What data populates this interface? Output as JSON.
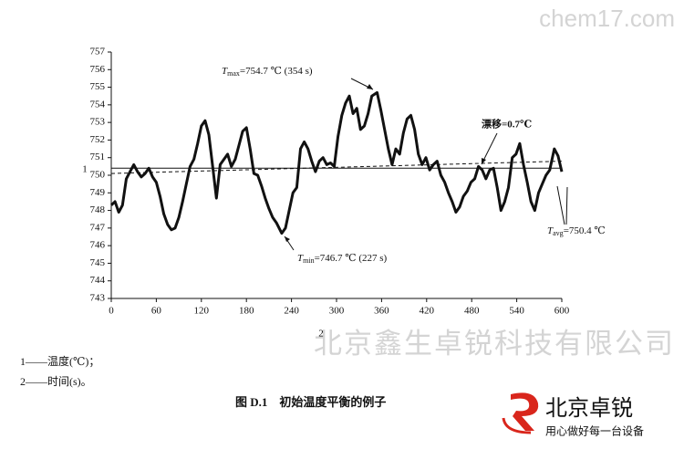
{
  "watermark": "chem17.com",
  "company": "北京鑫生卓锐科技有限公司",
  "logo": {
    "name": "北京卓锐",
    "slogan": "用心做好每一台设备"
  },
  "notes": [
    "1——温度(℃)；",
    "2——时间(s)。"
  ],
  "caption": "图 D.1　初始温度平衡的例子",
  "chart_data": {
    "type": "line",
    "y_label": "1",
    "x_label": "2",
    "color": "#111111",
    "xlim": [
      0,
      600
    ],
    "ylim": [
      743,
      757
    ],
    "xticks": [
      0,
      60,
      120,
      180,
      240,
      300,
      360,
      420,
      480,
      540,
      600
    ],
    "yticks": [
      743,
      744,
      745,
      746,
      747,
      748,
      749,
      750,
      751,
      752,
      753,
      754,
      755,
      756,
      757
    ],
    "x": [
      0,
      5,
      10,
      15,
      20,
      25,
      30,
      35,
      40,
      45,
      50,
      55,
      60,
      65,
      70,
      75,
      80,
      85,
      90,
      95,
      100,
      105,
      110,
      115,
      120,
      125,
      130,
      135,
      140,
      145,
      150,
      155,
      160,
      165,
      170,
      175,
      180,
      185,
      190,
      195,
      200,
      205,
      210,
      215,
      220,
      227,
      232,
      237,
      242,
      247,
      252,
      257,
      262,
      267,
      272,
      277,
      282,
      287,
      292,
      297,
      302,
      307,
      312,
      317,
      322,
      327,
      332,
      337,
      342,
      347,
      354,
      359,
      364,
      369,
      374,
      379,
      384,
      389,
      394,
      399,
      404,
      409,
      414,
      419,
      424,
      429,
      434,
      439,
      444,
      449,
      454,
      459,
      464,
      469,
      474,
      479,
      484,
      489,
      494,
      499,
      504,
      509,
      514,
      519,
      524,
      529,
      534,
      539,
      544,
      549,
      554,
      559,
      564,
      569,
      574,
      579,
      584,
      590,
      595,
      600
    ],
    "values": [
      748.3,
      748.5,
      747.9,
      748.3,
      749.8,
      750.2,
      750.6,
      750.2,
      749.9,
      750.1,
      750.4,
      749.9,
      749.6,
      748.8,
      747.8,
      747.2,
      746.9,
      747.0,
      747.6,
      748.5,
      749.5,
      750.5,
      750.9,
      751.8,
      752.8,
      753.1,
      752.3,
      750.5,
      748.7,
      750.6,
      750.9,
      751.2,
      750.5,
      750.9,
      751.7,
      752.5,
      752.7,
      751.5,
      750.1,
      750.0,
      749.4,
      748.7,
      748.1,
      747.6,
      747.3,
      746.7,
      747.0,
      748.0,
      749.0,
      749.3,
      751.5,
      751.9,
      751.5,
      750.8,
      750.2,
      750.8,
      751.0,
      750.6,
      750.7,
      750.5,
      752.2,
      753.4,
      754.1,
      754.5,
      753.5,
      753.8,
      752.6,
      752.8,
      753.5,
      754.5,
      754.7,
      753.7,
      752.6,
      751.5,
      750.6,
      751.5,
      751.2,
      752.4,
      753.2,
      753.4,
      752.6,
      751.2,
      750.6,
      751.0,
      750.3,
      750.6,
      750.8,
      750.0,
      749.6,
      749.0,
      748.5,
      747.9,
      748.2,
      748.8,
      749.1,
      749.6,
      749.8,
      750.5,
      750.3,
      749.8,
      750.3,
      750.4,
      749.3,
      748.0,
      748.5,
      749.3,
      751.0,
      751.2,
      751.8,
      750.6,
      749.6,
      748.5,
      748.0,
      749.0,
      749.5,
      750.0,
      750.3,
      751.5,
      751.1,
      750.2
    ],
    "avg_line": 750.4,
    "drift_line": [
      750.1,
      750.8
    ],
    "annotations": [
      {
        "symbol": "T",
        "sub": "max",
        "text": "=754.7 ℃ (354 s)"
      },
      {
        "symbol": "T",
        "sub": "min",
        "text": "=746.7 ℃ (227 s)"
      },
      {
        "text": "漂移=0.7℃"
      },
      {
        "symbol": "T",
        "sub": "avg",
        "text": "=750.4 ℃"
      }
    ]
  }
}
